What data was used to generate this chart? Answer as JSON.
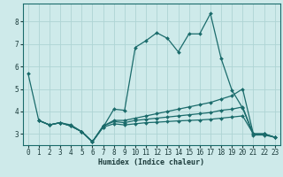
{
  "xlabel": "Humidex (Indice chaleur)",
  "xlim": [
    -0.5,
    23.5
  ],
  "ylim": [
    2.5,
    8.8
  ],
  "yticks": [
    3,
    4,
    5,
    6,
    7,
    8
  ],
  "xticks": [
    0,
    1,
    2,
    3,
    4,
    5,
    6,
    7,
    8,
    9,
    10,
    11,
    12,
    13,
    14,
    15,
    16,
    17,
    18,
    19,
    20,
    21,
    22,
    23
  ],
  "bg_color": "#ceeaea",
  "grid_color": "#aed4d4",
  "line_color": "#1a6b6b",
  "lines": [
    {
      "x": [
        0,
        1,
        2,
        3,
        4,
        5,
        6,
        7,
        8,
        9,
        10,
        11,
        12,
        13,
        14,
        15,
        16,
        17,
        18,
        19,
        20,
        21,
        22,
        23
      ],
      "y": [
        5.7,
        3.6,
        3.4,
        3.5,
        3.4,
        3.1,
        2.65,
        3.3,
        4.1,
        4.05,
        6.85,
        7.15,
        7.5,
        7.25,
        6.65,
        7.45,
        7.45,
        8.35,
        6.35,
        4.95,
        4.15,
        2.95,
        2.95,
        2.85
      ]
    },
    {
      "x": [
        1,
        2,
        3,
        4,
        5,
        6,
        7,
        8,
        9,
        10,
        11,
        12,
        13,
        14,
        15,
        16,
        17,
        18,
        19,
        20,
        21,
        22,
        23
      ],
      "y": [
        3.6,
        3.4,
        3.5,
        3.35,
        3.1,
        2.65,
        3.35,
        3.6,
        3.6,
        3.7,
        3.8,
        3.9,
        4.0,
        4.1,
        4.2,
        4.3,
        4.4,
        4.55,
        4.7,
        5.0,
        3.0,
        3.0,
        2.85
      ]
    },
    {
      "x": [
        1,
        2,
        3,
        4,
        5,
        6,
        7,
        8,
        9,
        10,
        11,
        12,
        13,
        14,
        15,
        16,
        17,
        18,
        19,
        20,
        21,
        22,
        23
      ],
      "y": [
        3.6,
        3.4,
        3.5,
        3.35,
        3.1,
        2.65,
        3.35,
        3.55,
        3.5,
        3.6,
        3.65,
        3.7,
        3.75,
        3.8,
        3.85,
        3.9,
        3.95,
        4.05,
        4.1,
        4.2,
        3.0,
        3.0,
        2.85
      ]
    },
    {
      "x": [
        1,
        2,
        3,
        4,
        5,
        6,
        7,
        8,
        9,
        10,
        11,
        12,
        13,
        14,
        15,
        16,
        17,
        18,
        19,
        20,
        21,
        22,
        23
      ],
      "y": [
        3.6,
        3.4,
        3.5,
        3.35,
        3.1,
        2.65,
        3.3,
        3.45,
        3.4,
        3.45,
        3.5,
        3.52,
        3.55,
        3.58,
        3.6,
        3.62,
        3.65,
        3.7,
        3.75,
        3.8,
        3.0,
        3.0,
        2.85
      ]
    }
  ]
}
